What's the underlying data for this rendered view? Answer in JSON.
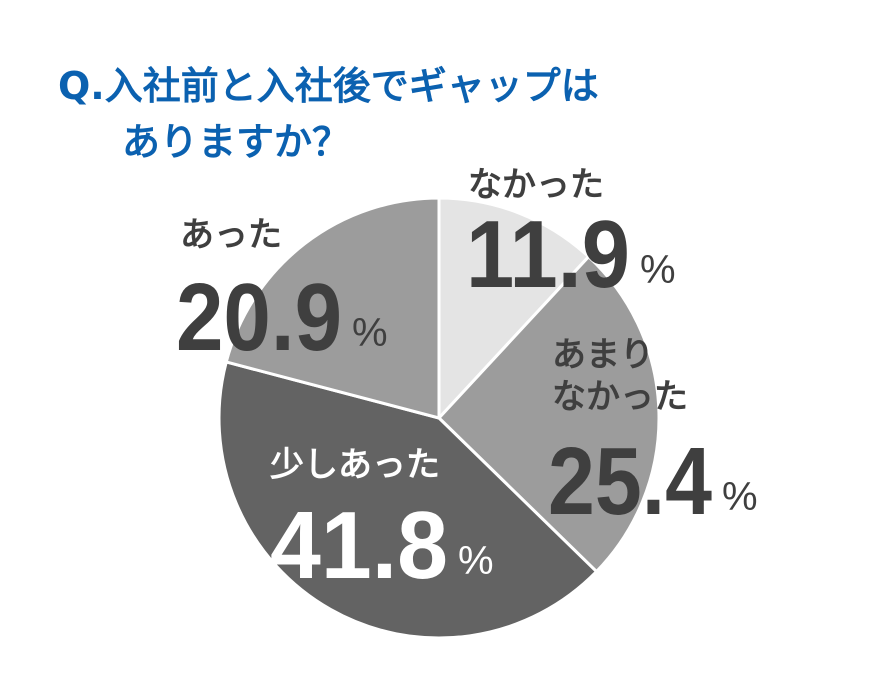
{
  "title_line1": "Q.入社前と入社後でギャップは",
  "title_line2": "ありますか？",
  "colors": {
    "title": "#0b61b0",
    "dark_text": "#3f3f3f",
    "light_text": "#ffffff"
  },
  "chart_data": {
    "type": "pie",
    "start_angle_deg": 0,
    "direction": "clockwise",
    "slices": [
      {
        "label": "なかった",
        "value": 11.9,
        "value_text": "11.9",
        "unit": "%",
        "color": "#e4e4e4",
        "text_color": "#3f3f3f"
      },
      {
        "label": "あまり\nなかった",
        "value": 25.4,
        "value_text": "25.4",
        "unit": "%",
        "color": "#9c9c9c",
        "text_color": "#3f3f3f"
      },
      {
        "label": "少しあった",
        "value": 41.8,
        "value_text": "41.8",
        "unit": "%",
        "color": "#636363",
        "text_color": "#ffffff"
      },
      {
        "label": "あった",
        "value": 20.9,
        "value_text": "20.9",
        "unit": "%",
        "color": "#9c9c9c",
        "text_color": "#3f3f3f"
      }
    ]
  }
}
